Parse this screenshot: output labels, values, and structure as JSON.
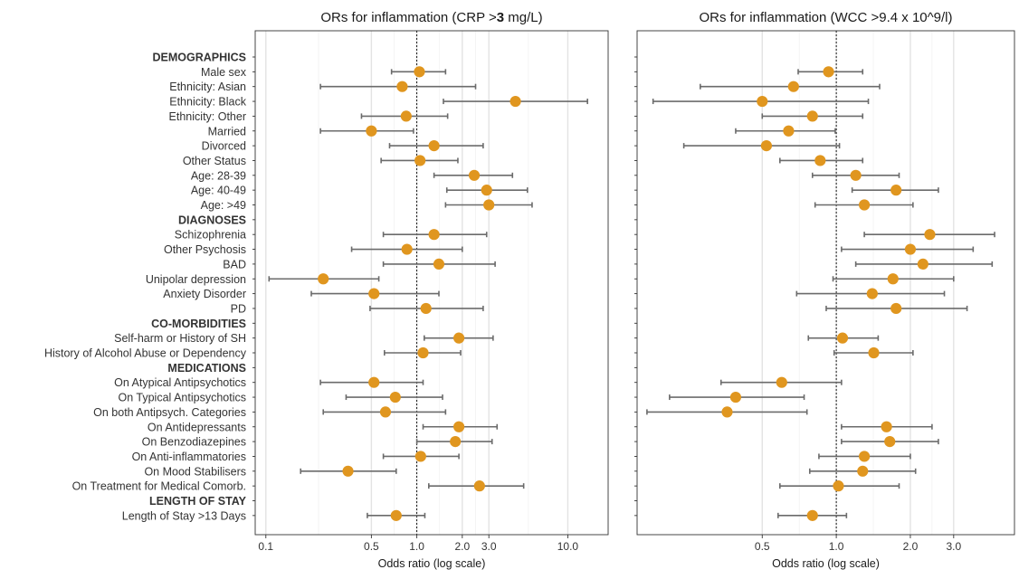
{
  "chart_data": {
    "type": "forest",
    "x_scale": "log",
    "rows": [
      {
        "label": "DEMOGRAPHICS",
        "header": true
      },
      {
        "label": "Male sex"
      },
      {
        "label": "Ethnicity: Asian"
      },
      {
        "label": "Ethnicity: Black"
      },
      {
        "label": "Ethnicity: Other"
      },
      {
        "label": "Married"
      },
      {
        "label": "Divorced"
      },
      {
        "label": "Other Status"
      },
      {
        "label": "Age: 28-39"
      },
      {
        "label": "Age: 40-49"
      },
      {
        "label": "Age: >49"
      },
      {
        "label": "DIAGNOSES",
        "header": true
      },
      {
        "label": "Schizophrenia"
      },
      {
        "label": "Other Psychosis"
      },
      {
        "label": "BAD"
      },
      {
        "label": "Unipolar depression"
      },
      {
        "label": "Anxiety Disorder"
      },
      {
        "label": "PD"
      },
      {
        "label": "CO-MORBIDITIES",
        "header": true
      },
      {
        "label": "Self-harm or History of SH"
      },
      {
        "label": "History of Alcohol Abuse or Dependency"
      },
      {
        "label": "MEDICATIONS",
        "header": true
      },
      {
        "label": "On Atypical Antipsychotics"
      },
      {
        "label": "On Typical Antipsychotics"
      },
      {
        "label": "On both Antipsych. Categories"
      },
      {
        "label": "On Antidepressants"
      },
      {
        "label": "On Benzodiazepines"
      },
      {
        "label": "On Anti-inflammatories"
      },
      {
        "label": "On Mood Stabilisers"
      },
      {
        "label": "On Treatment for Medical Comorb."
      },
      {
        "label": "LENGTH OF STAY",
        "header": true
      },
      {
        "label": "Length of Stay >13 Days"
      }
    ],
    "panels": [
      {
        "title_parts": [
          "ORs for inflammation (CRP >",
          "3",
          " mg/L)"
        ],
        "xlabel": "Odds ratio (log scale)",
        "xlim": [
          0.085,
          18.5
        ],
        "xticks": [
          0.1,
          0.5,
          1.0,
          2.0,
          3.0,
          10.0
        ],
        "xtick_labels": [
          "0.1",
          "0.5",
          "1.0",
          "2.0",
          "3.0",
          "10.0"
        ],
        "reference": 1.0,
        "estimates": [
          null,
          {
            "or": 1.04,
            "lo": 0.68,
            "hi": 1.55
          },
          {
            "or": 0.8,
            "lo": 0.23,
            "hi": 2.45
          },
          {
            "or": 4.5,
            "lo": 1.5,
            "hi": 13.5
          },
          {
            "or": 0.85,
            "lo": 0.43,
            "hi": 1.6
          },
          {
            "or": 0.5,
            "lo": 0.23,
            "hi": 0.95
          },
          {
            "or": 1.3,
            "lo": 0.66,
            "hi": 2.75
          },
          {
            "or": 1.05,
            "lo": 0.58,
            "hi": 1.87
          },
          {
            "or": 2.4,
            "lo": 1.3,
            "hi": 4.3
          },
          {
            "or": 2.9,
            "lo": 1.58,
            "hi": 5.4
          },
          {
            "or": 3.0,
            "lo": 1.55,
            "hi": 5.8
          },
          null,
          {
            "or": 1.3,
            "lo": 0.6,
            "hi": 2.9
          },
          {
            "or": 0.86,
            "lo": 0.37,
            "hi": 2.0
          },
          {
            "or": 1.4,
            "lo": 0.6,
            "hi": 3.3
          },
          {
            "or": 0.24,
            "lo": 0.105,
            "hi": 0.56
          },
          {
            "or": 0.52,
            "lo": 0.2,
            "hi": 1.4
          },
          {
            "or": 1.15,
            "lo": 0.49,
            "hi": 2.75
          },
          null,
          {
            "or": 1.9,
            "lo": 1.12,
            "hi": 3.2
          },
          {
            "or": 1.1,
            "lo": 0.61,
            "hi": 1.95
          },
          null,
          {
            "or": 0.52,
            "lo": 0.23,
            "hi": 1.1
          },
          {
            "or": 0.72,
            "lo": 0.34,
            "hi": 1.48
          },
          {
            "or": 0.62,
            "lo": 0.24,
            "hi": 1.55
          },
          {
            "or": 1.9,
            "lo": 1.1,
            "hi": 3.4
          },
          {
            "or": 1.8,
            "lo": 1.0,
            "hi": 3.15
          },
          {
            "or": 1.06,
            "lo": 0.6,
            "hi": 1.9
          },
          {
            "or": 0.35,
            "lo": 0.17,
            "hi": 0.73
          },
          {
            "or": 2.6,
            "lo": 1.2,
            "hi": 5.1
          },
          null,
          {
            "or": 0.73,
            "lo": 0.47,
            "hi": 1.13
          }
        ]
      },
      {
        "title": "ORs for inflammation (WCC >9.4 x 10^9/l)",
        "xlabel": "Odds ratio (log scale)",
        "xlim": [
          0.155,
          5.3
        ],
        "xticks": [
          0.5,
          1.0,
          2.0,
          3.0
        ],
        "xtick_labels": [
          "0.5",
          "1.0",
          "2.0",
          "3.0"
        ],
        "reference": 1.0,
        "estimates": [
          null,
          {
            "or": 0.93,
            "lo": 0.7,
            "hi": 1.28
          },
          {
            "or": 0.67,
            "lo": 0.28,
            "hi": 1.5
          },
          {
            "or": 0.5,
            "lo": 0.18,
            "hi": 1.35
          },
          {
            "or": 0.8,
            "lo": 0.5,
            "hi": 1.28
          },
          {
            "or": 0.64,
            "lo": 0.39,
            "hi": 0.99
          },
          {
            "or": 0.52,
            "lo": 0.24,
            "hi": 1.03
          },
          {
            "or": 0.86,
            "lo": 0.59,
            "hi": 1.28
          },
          {
            "or": 1.2,
            "lo": 0.8,
            "hi": 1.8
          },
          {
            "or": 1.75,
            "lo": 1.16,
            "hi": 2.6
          },
          {
            "or": 1.3,
            "lo": 0.82,
            "hi": 2.05
          },
          null,
          {
            "or": 2.4,
            "lo": 1.3,
            "hi": 4.4
          },
          {
            "or": 2.0,
            "lo": 1.05,
            "hi": 3.6
          },
          {
            "or": 2.25,
            "lo": 1.2,
            "hi": 4.3
          },
          {
            "or": 1.7,
            "lo": 0.97,
            "hi": 3.0
          },
          {
            "or": 1.4,
            "lo": 0.69,
            "hi": 2.75
          },
          {
            "or": 1.75,
            "lo": 0.91,
            "hi": 3.4
          },
          null,
          {
            "or": 1.06,
            "lo": 0.77,
            "hi": 1.48
          },
          {
            "or": 1.42,
            "lo": 0.98,
            "hi": 2.05
          },
          null,
          {
            "or": 0.6,
            "lo": 0.34,
            "hi": 1.05
          },
          {
            "or": 0.39,
            "lo": 0.21,
            "hi": 0.74
          },
          {
            "or": 0.36,
            "lo": 0.17,
            "hi": 0.76
          },
          {
            "or": 1.6,
            "lo": 1.05,
            "hi": 2.45
          },
          {
            "or": 1.65,
            "lo": 1.05,
            "hi": 2.6
          },
          {
            "or": 1.3,
            "lo": 0.85,
            "hi": 2.0
          },
          {
            "or": 1.28,
            "lo": 0.78,
            "hi": 2.1
          },
          {
            "or": 1.02,
            "lo": 0.59,
            "hi": 1.8
          },
          null,
          {
            "or": 0.8,
            "lo": 0.58,
            "hi": 1.1
          }
        ]
      }
    ],
    "colors": {
      "point": "#e0961f",
      "ci": "#6b6b6b",
      "grid": "#e3e3e3",
      "reference": "#000000"
    }
  }
}
